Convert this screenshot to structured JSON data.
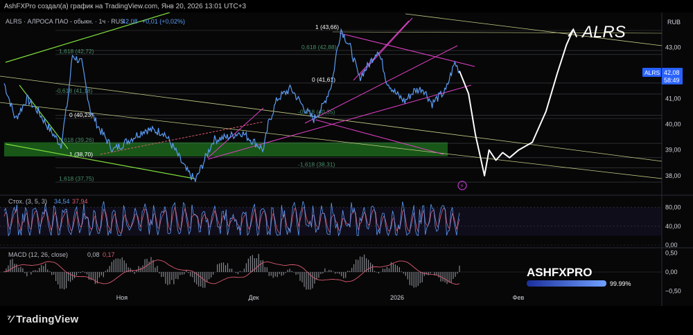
{
  "header": {
    "credit": "AshFXPro создал(а) график на TradingView.com, Янв 20, 2026 13:01 UTC+3",
    "legend_symbol": "ALRS · АЛРОСА ПАО - обыкн. · 1ч · RUS",
    "legend_price": "42,08",
    "legend_change": "+0,01 (+0,02%)",
    "currency": "RUB",
    "annotation": "ALRS"
  },
  "price_badge": {
    "symbol": "ALRS",
    "price": "42,08",
    "countdown": "58:49"
  },
  "fib_labels": [
    {
      "text": "1 (43,66)",
      "value": 43.66
    },
    {
      "text": "0,618 (42,88)",
      "value": 42.88
    },
    {
      "text": "1,618 (42,72)",
      "value": 42.72
    },
    {
      "text": "0 (41,61)",
      "value": 41.61
    },
    {
      "text": "-0,618 (41,18)",
      "value": 41.18
    },
    {
      "text": "-0,618 (40,35)",
      "value": 40.35
    },
    {
      "text": "0 (40,23)",
      "value": 40.23
    },
    {
      "text": "0,618 (39,26)",
      "value": 39.26
    },
    {
      "text": "1 (38,70)",
      "value": 38.7
    },
    {
      "text": "-1,618 (38,31)",
      "value": 38.31
    },
    {
      "text": "1,618 (37,75)",
      "value": 37.75
    }
  ],
  "stoch": {
    "label": "Стох. (3, 5, 3)",
    "k": "34,54",
    "d": "37,94",
    "ticks": [
      "80,00",
      "40,00",
      "0,00"
    ]
  },
  "macd": {
    "label": "MACD (12, 26, close)",
    "macd": "0,08",
    "signal": "0,17",
    "ticks": [
      "0,50",
      "0,00",
      "−0,50"
    ]
  },
  "brand": {
    "text": "ASHFXPRO",
    "percent": "99.99%",
    "progress": 0.9999
  },
  "footer": {
    "logo": "TradingView"
  },
  "colors": {
    "price": "#5b9cf6",
    "k": "#5b9cf6",
    "d": "#e05c74",
    "fib": "#4a8f6b",
    "channel_pink": "#e040c8",
    "trend_green": "#7fe03c",
    "zone": "#1d6b1d"
  },
  "chart_data": {
    "type": "line",
    "title": "",
    "xlabel": "",
    "ylabel": "",
    "x_ticks": [
      "Ноя",
      "Дек",
      "2026",
      "Фев"
    ],
    "y_ticks": [
      "43,00",
      "42,00",
      "41,00",
      "40,00",
      "39,00",
      "38,00"
    ],
    "ylim": [
      37.4,
      44.2
    ],
    "price_keypoints": [
      [
        0,
        41.6
      ],
      [
        5,
        40.2
      ],
      [
        10,
        41.0
      ],
      [
        15,
        40.5
      ],
      [
        20,
        39.8
      ],
      [
        25,
        39.2
      ],
      [
        28,
        41.0
      ],
      [
        30,
        42.7
      ],
      [
        34,
        42.4
      ],
      [
        38,
        40.5
      ],
      [
        42,
        39.8
      ],
      [
        48,
        39.0
      ],
      [
        55,
        39.4
      ],
      [
        62,
        39.8
      ],
      [
        70,
        39.7
      ],
      [
        75,
        39.0
      ],
      [
        80,
        38.2
      ],
      [
        84,
        37.8
      ],
      [
        88,
        38.6
      ],
      [
        92,
        39.4
      ],
      [
        98,
        39.5
      ],
      [
        104,
        39.7
      ],
      [
        110,
        39.3
      ],
      [
        114,
        39.0
      ],
      [
        116,
        40.0
      ],
      [
        120,
        41.0
      ],
      [
        126,
        41.4
      ],
      [
        132,
        40.6
      ],
      [
        136,
        40.2
      ],
      [
        140,
        40.7
      ],
      [
        144,
        41.6
      ],
      [
        146,
        42.8
      ],
      [
        148,
        43.7
      ],
      [
        152,
        43.0
      ],
      [
        156,
        41.8
      ],
      [
        160,
        42.3
      ],
      [
        164,
        42.9
      ],
      [
        166,
        42.4
      ],
      [
        168,
        41.7
      ],
      [
        172,
        41.2
      ],
      [
        176,
        40.9
      ],
      [
        180,
        41.3
      ],
      [
        184,
        41.4
      ],
      [
        188,
        40.8
      ],
      [
        190,
        41.0
      ],
      [
        194,
        41.3
      ],
      [
        196,
        41.9
      ],
      [
        198,
        42.4
      ],
      [
        200,
        42.08
      ]
    ],
    "projection": [
      [
        200,
        42.08
      ],
      [
        204,
        41.2
      ],
      [
        207,
        39.6
      ],
      [
        209,
        38.8
      ],
      [
        211,
        38.0
      ],
      [
        213,
        39.0
      ],
      [
        216,
        38.6
      ],
      [
        219,
        38.9
      ],
      [
        222,
        38.7
      ],
      [
        226,
        39.0
      ],
      [
        232,
        39.3
      ],
      [
        238,
        40.5
      ],
      [
        243,
        42.0
      ],
      [
        247,
        43.1
      ],
      [
        250,
        43.7
      ]
    ],
    "stoch_range": [
      0,
      100
    ],
    "macd_range": [
      -0.6,
      0.6
    ]
  }
}
